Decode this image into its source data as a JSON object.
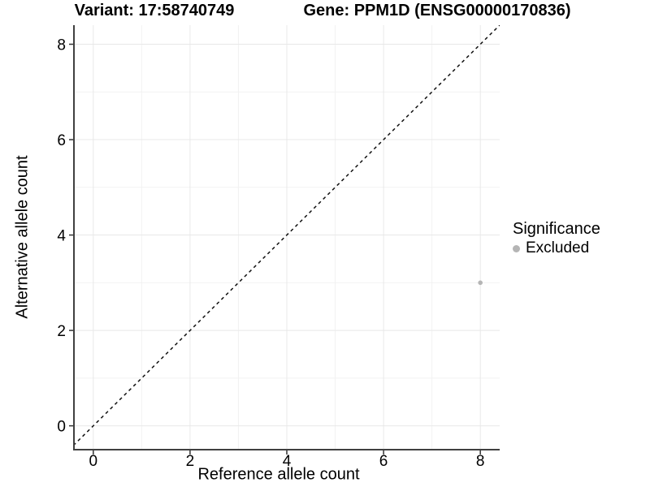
{
  "titles": {
    "variant": "Variant: 17:58740749",
    "gene": "Gene: PPM1D (ENSG00000170836)"
  },
  "chart_data": {
    "type": "scatter",
    "title_left": "Variant: 17:58740749",
    "title_right": "Gene: PPM1D (ENSG00000170836)",
    "xlabel": "Reference allele count",
    "ylabel": "Alternative allele count",
    "xlim": [
      -0.4,
      8.4
    ],
    "ylim": [
      -0.5,
      8.4
    ],
    "xticks": [
      0,
      2,
      4,
      6,
      8
    ],
    "yticks": [
      0,
      2,
      4,
      6,
      8
    ],
    "grid": "major-and-minor",
    "reference_line": {
      "type": "identity y=x",
      "style": "dashed",
      "color": "#111111"
    },
    "points": [
      {
        "x": 8,
        "y": 3,
        "series": "Excluded"
      }
    ],
    "legend": {
      "position": "right",
      "title": "Significance",
      "items": [
        {
          "label": "Excluded",
          "color": "#b5b5b5"
        }
      ]
    },
    "colors": {
      "background": "#ffffff",
      "grid_major": "#e8e8e8",
      "grid_minor": "#f2f2f2",
      "axis_line": "#404040",
      "tick_mark": "#333333",
      "point": "#b5b5b5"
    }
  }
}
